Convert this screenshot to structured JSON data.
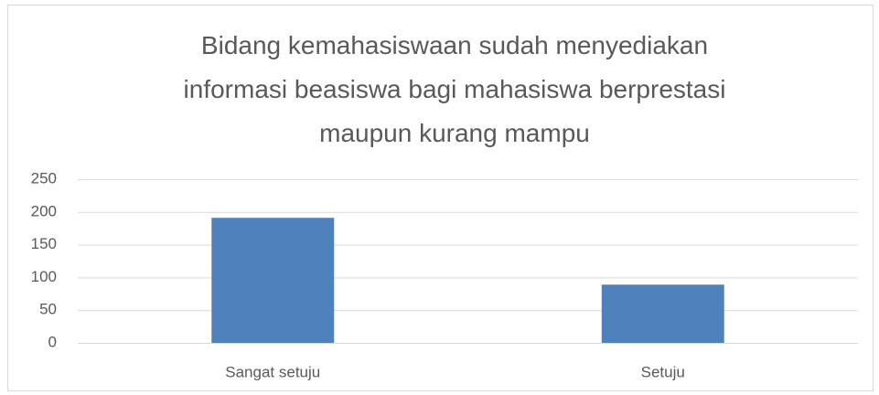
{
  "chart_data": {
    "type": "bar",
    "title": "Bidang kemahasiswaan sudah menyediakan informasi beasiswa bagi mahasiswa berprestasi maupun kurang mampu",
    "categories": [
      "Sangat setuju",
      "Setuju"
    ],
    "values": [
      191,
      89
    ],
    "color": "#4f81bd",
    "ylim": [
      0,
      250
    ],
    "yticks": [
      0,
      50,
      100,
      150,
      200,
      250
    ],
    "grid": true
  }
}
